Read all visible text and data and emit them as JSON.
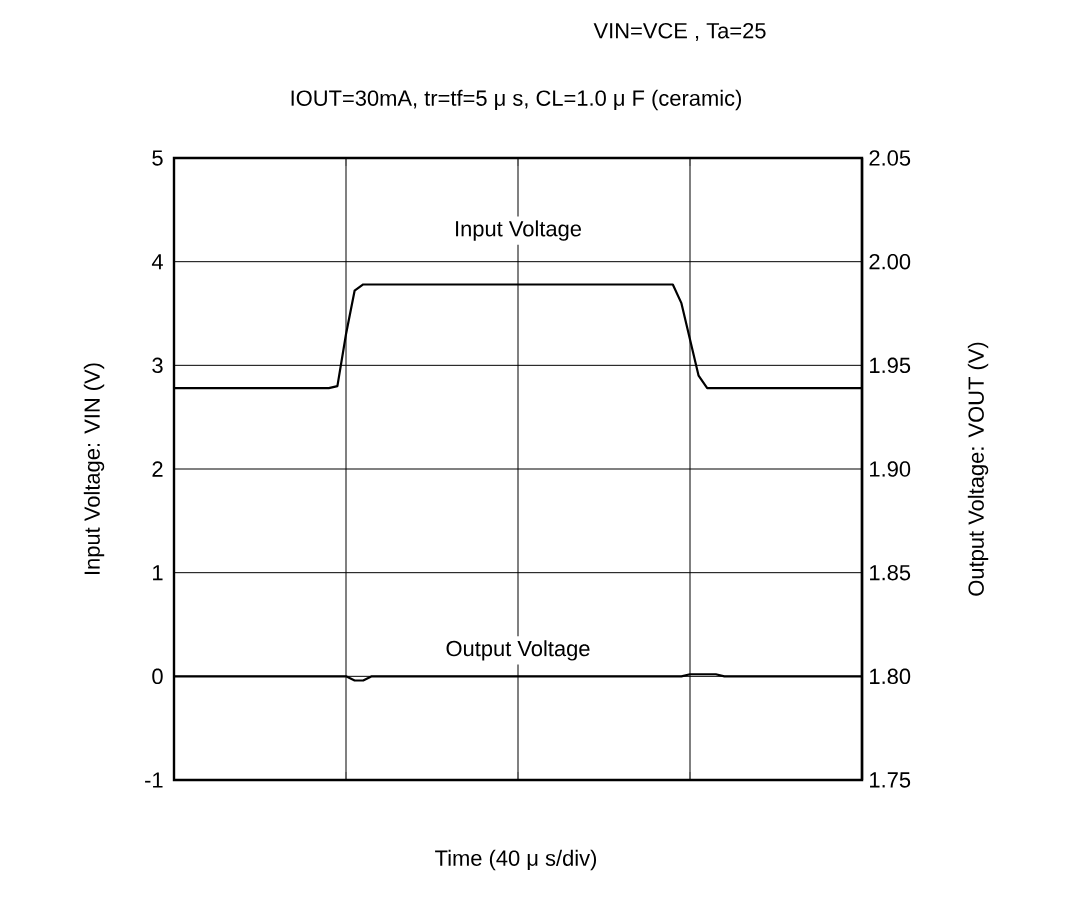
{
  "chart_data": {
    "type": "line",
    "title": "VIN=VCE , Ta=25",
    "subtitle": "IOUT=30mA, tr=tf=5 μ s, CL=1.0 μ F (ceramic)",
    "xlabel": "Time (40 μ s/div)",
    "ylabel": "Input Voltage: VIN (V)",
    "y2label": "Output Voltage: VOUT (V)",
    "categories": [
      null,
      null,
      null,
      null,
      null,
      null,
      null,
      null,
      null,
      null,
      null,
      null,
      null,
      null,
      null,
      null,
      null,
      null,
      null,
      null,
      null,
      null,
      null,
      null,
      null,
      null,
      null,
      null,
      null,
      null,
      null,
      null,
      null,
      null,
      null,
      null,
      null,
      null,
      null,
      null,
      null,
      null,
      null,
      null,
      null,
      null,
      null,
      null,
      null,
      null,
      null,
      null,
      null,
      null,
      null,
      null,
      null,
      null,
      null,
      null,
      null,
      null,
      null,
      null,
      null,
      null,
      null,
      null,
      null,
      null,
      null,
      null,
      null,
      null,
      null,
      null,
      null,
      null,
      null,
      null,
      null
    ],
    "ylim": [
      -1,
      5
    ],
    "yticks": [
      -1,
      0,
      1,
      2,
      3,
      4,
      5
    ],
    "y2lim": [
      1.75,
      2.05
    ],
    "y2ticks": [
      1.75,
      {
        "value": 1.8,
        "label": "1.80"
      },
      1.85,
      {
        "value": 1.9,
        "label": "1.90"
      },
      1.95,
      {
        "value": 2.0,
        "label": "2.00"
      },
      2.05
    ],
    "grid": true,
    "legend": false,
    "marker": "none",
    "line_style": "solid",
    "series": [
      {
        "name": "Input Voltage",
        "color": "#000000",
        "values": [
          2.78,
          2.78,
          2.78,
          2.78,
          2.78,
          2.78,
          2.78,
          2.78,
          2.78,
          2.78,
          2.78,
          2.78,
          2.78,
          2.78,
          2.78,
          2.78,
          2.78,
          2.78,
          2.78,
          2.8,
          3.3,
          3.72,
          3.78,
          3.78,
          3.78,
          3.78,
          3.78,
          3.78,
          3.78,
          3.78,
          3.78,
          3.78,
          3.78,
          3.78,
          3.78,
          3.78,
          3.78,
          3.78,
          3.78,
          3.78,
          3.78,
          3.78,
          3.78,
          3.78,
          3.78,
          3.78,
          3.78,
          3.78,
          3.78,
          3.78,
          3.78,
          3.78,
          3.78,
          3.78,
          3.78,
          3.78,
          3.78,
          3.78,
          3.78,
          3.6,
          3.25,
          2.9,
          2.78,
          2.78,
          2.78,
          2.78,
          2.78,
          2.78,
          2.78,
          2.78,
          2.78,
          2.78,
          2.78,
          2.78,
          2.78,
          2.78,
          2.78,
          2.78,
          2.78,
          2.78,
          2.78
        ]
      },
      {
        "name": "Output Voltage",
        "color": "#000000",
        "axis": "y2",
        "values": [
          1.8,
          1.8,
          1.8,
          1.8,
          1.8,
          1.8,
          1.8,
          1.8,
          1.8,
          1.8,
          1.8,
          1.8,
          1.8,
          1.8,
          1.8,
          1.8,
          1.8,
          1.8,
          1.8,
          1.8,
          1.8,
          1.798,
          1.798,
          1.8,
          1.8,
          1.8,
          1.8,
          1.8,
          1.8,
          1.8,
          1.8,
          1.8,
          1.8,
          1.8,
          1.8,
          1.8,
          1.8,
          1.8,
          1.8,
          1.8,
          1.8,
          1.8,
          1.8,
          1.8,
          1.8,
          1.8,
          1.8,
          1.8,
          1.8,
          1.8,
          1.8,
          1.8,
          1.8,
          1.8,
          1.8,
          1.8,
          1.8,
          1.8,
          1.8,
          1.8,
          1.801,
          1.801,
          1.801,
          1.801,
          1.8,
          1.8,
          1.8,
          1.8,
          1.8,
          1.8,
          1.8,
          1.8,
          1.8,
          1.8,
          1.8,
          1.8,
          1.8,
          1.8,
          1.8,
          1.8,
          1.8
        ]
      }
    ]
  }
}
